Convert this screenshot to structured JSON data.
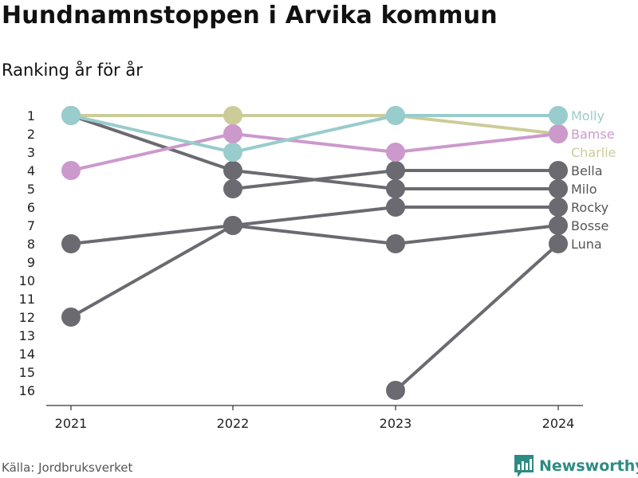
{
  "chart_data": {
    "type": "line",
    "title": "Hundnamnstoppen i Arvika kommun",
    "subtitle": "Ranking år för år",
    "source": "Källa: Jordbruksverket",
    "brand": "Newsworthy",
    "x": [
      "2021",
      "2022",
      "2023",
      "2024"
    ],
    "y_ticks": [
      1,
      2,
      3,
      4,
      5,
      6,
      7,
      8,
      9,
      10,
      11,
      12,
      13,
      14,
      15,
      16
    ],
    "ylim": [
      1,
      16
    ],
    "y_reversed": true,
    "grid": false,
    "legend": "labels at line ends",
    "series": [
      {
        "name": "Luna",
        "values": [
          null,
          null,
          16,
          8
        ],
        "color": "#6b6a70"
      },
      {
        "name": "Bosse",
        "values": [
          8,
          7,
          8,
          7
        ],
        "color": "#6b6a70"
      },
      {
        "name": "Rocky",
        "values": [
          12,
          7,
          6,
          6
        ],
        "color": "#6b6a70"
      },
      {
        "name": "Milo",
        "values": [
          1,
          4,
          5,
          5
        ],
        "color": "#6b6a70"
      },
      {
        "name": "Bella",
        "values": [
          null,
          5,
          4,
          4
        ],
        "color": "#6b6a70"
      },
      {
        "name": "Charlie",
        "values": [
          1,
          1,
          1,
          2
        ],
        "color": "#cccc99"
      },
      {
        "name": "Bamse",
        "values": [
          4,
          2,
          3,
          2
        ],
        "color": "#cc99cc"
      },
      {
        "name": "Molly",
        "values": [
          1,
          3,
          1,
          1
        ],
        "color": "#99cccc"
      }
    ]
  }
}
